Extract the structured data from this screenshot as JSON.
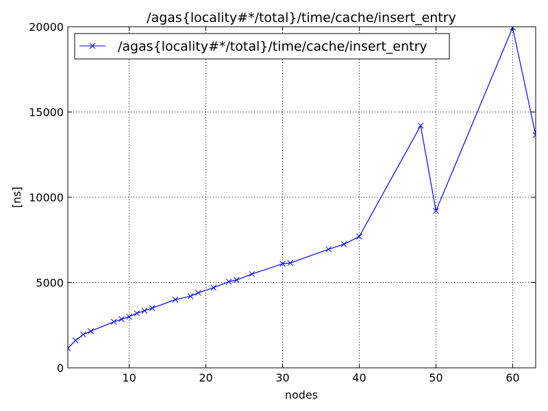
{
  "chart_data": {
    "type": "line",
    "title": "/agas{locality#*/total}/time/cache/insert_entry",
    "xlabel": "nodes",
    "ylabel": "[ns]",
    "xlim": [
      2,
      63
    ],
    "ylim": [
      0,
      20000
    ],
    "x_ticks": [
      10,
      20,
      30,
      40,
      50,
      60
    ],
    "y_ticks": [
      0,
      5000,
      10000,
      15000,
      20000
    ],
    "grid": true,
    "legend": "upper-left",
    "series": [
      {
        "name": "/agas{locality#*/total}/time/cache/insert_entry",
        "color": "#0000ff",
        "marker": "x",
        "x": [
          2,
          3,
          4,
          5,
          8,
          9,
          10,
          11,
          12,
          13,
          16,
          18,
          19,
          21,
          23,
          24,
          26,
          30,
          31,
          36,
          38,
          40,
          48,
          50,
          60,
          63
        ],
        "y": [
          1150,
          1600,
          1950,
          2150,
          2700,
          2850,
          3000,
          3200,
          3350,
          3500,
          4000,
          4200,
          4400,
          4700,
          5050,
          5150,
          5500,
          6100,
          6150,
          6950,
          7250,
          7700,
          14200,
          9200,
          19950,
          13650
        ]
      }
    ]
  }
}
